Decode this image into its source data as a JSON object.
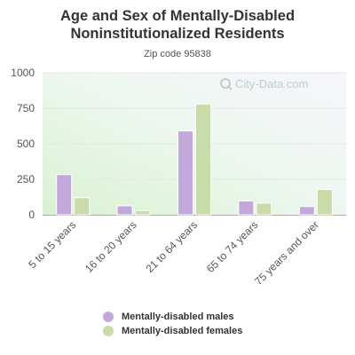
{
  "title": "Age and Sex of Mentally-Disabled Noninstitutionalized Residents",
  "subtitle": "Zip code 95838",
  "watermark": "City-Data.com",
  "colors": {
    "males": "#c3a8dc",
    "females": "#c8dba8",
    "gridline": "#e6e6e6"
  },
  "chart_data": {
    "type": "bar",
    "title": "Age and Sex of Mentally-Disabled Noninstitutionalized Residents",
    "subtitle": "Zip code 95838",
    "categories": [
      "5 to 15 years",
      "16 to 20 years",
      "21 to 64 years",
      "65 to 74 years",
      "75 years and over"
    ],
    "series": [
      {
        "name": "Mentally-disabled males",
        "values": [
          283,
          63,
          590,
          97,
          58
        ]
      },
      {
        "name": "Mentally-disabled females",
        "values": [
          120,
          28,
          780,
          82,
          178
        ]
      }
    ],
    "yticks": [
      0,
      250,
      500,
      750,
      1000
    ],
    "ylim": [
      0,
      1000
    ],
    "grid": true,
    "legend": "bottom"
  }
}
